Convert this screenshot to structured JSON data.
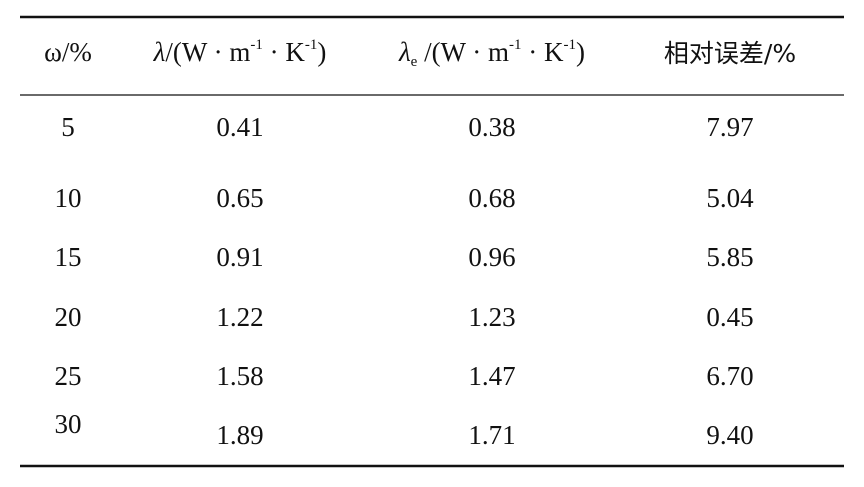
{
  "table": {
    "header": [
      [
        {
          "text": "ω/%"
        }
      ],
      [
        {
          "text": "λ",
          "style": "italic"
        },
        {
          "text": "/(W · m"
        },
        {
          "text": "-1",
          "style": "sup"
        },
        {
          "text": " · K"
        },
        {
          "text": "-1",
          "style": "sup"
        },
        {
          "text": ")"
        }
      ],
      [
        {
          "text": "λ",
          "style": "italic"
        },
        {
          "text": "e",
          "style": "sub"
        },
        {
          "text": " /(W · m"
        },
        {
          "text": "-1",
          "style": "sup"
        },
        {
          "text": " · K"
        },
        {
          "text": "-1",
          "style": "sup"
        },
        {
          "text": ")"
        }
      ],
      [
        {
          "text": "相对误差/%"
        }
      ]
    ],
    "rows": [
      [
        "5",
        "0.41",
        "0.38",
        "7.97"
      ],
      [
        "10",
        "0.65",
        "0.68",
        "5.04"
      ],
      [
        "15",
        "0.91",
        "0.96",
        "5.85"
      ],
      [
        "20",
        "1.22",
        "1.23",
        "0.45"
      ],
      [
        "25",
        "1.58",
        "1.47",
        "6.70"
      ],
      [
        "30",
        "1.89",
        "1.71",
        "9.40"
      ]
    ]
  }
}
